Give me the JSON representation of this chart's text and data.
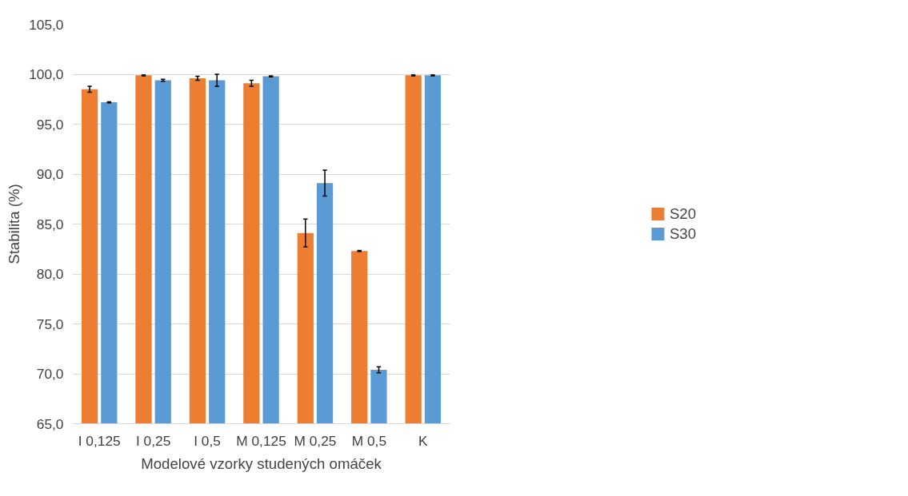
{
  "chart_data": {
    "type": "bar",
    "xlabel": "Modelové vzorky studených omáček",
    "ylabel": "Stabilita (%)",
    "categories": [
      "I 0,125",
      "I 0,25",
      "I 0,5",
      "M 0,125",
      "M 0,25",
      "M 0,5",
      "K"
    ],
    "series": [
      {
        "name": "S20",
        "color": "#ed7d31",
        "values": [
          98.5,
          99.9,
          99.6,
          99.1,
          84.1,
          82.3,
          99.9
        ],
        "errors": [
          0.3,
          0.05,
          0.2,
          0.3,
          1.4,
          0.05,
          0.05
        ]
      },
      {
        "name": "S30",
        "color": "#5b9bd5",
        "values": [
          97.2,
          99.4,
          99.4,
          99.8,
          89.1,
          70.4,
          99.9
        ],
        "errors": [
          0.05,
          0.1,
          0.6,
          0.05,
          1.3,
          0.3,
          0.05
        ]
      }
    ],
    "ylim": [
      65,
      105
    ],
    "yticks": [
      {
        "value": 65,
        "label": "65,0"
      },
      {
        "value": 70,
        "label": "70,0"
      },
      {
        "value": 75,
        "label": "75,0"
      },
      {
        "value": 80,
        "label": "80,0"
      },
      {
        "value": 85,
        "label": "85,0"
      },
      {
        "value": 90,
        "label": "90,0"
      },
      {
        "value": 95,
        "label": "95,0"
      },
      {
        "value": 100,
        "label": "100,0"
      },
      {
        "value": 105,
        "label": "105,0"
      }
    ],
    "grid": "y",
    "legend": "right"
  }
}
